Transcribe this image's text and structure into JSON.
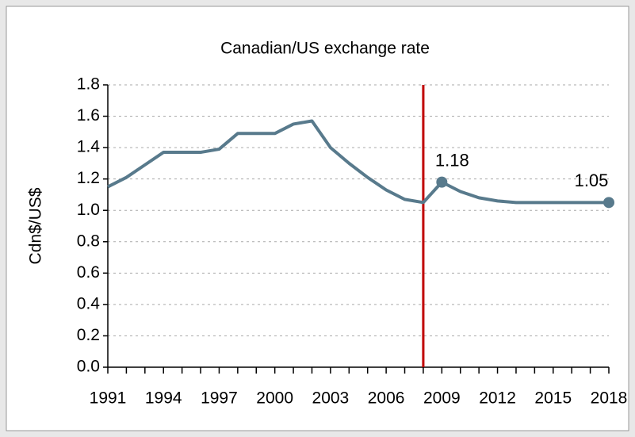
{
  "chart_data": {
    "type": "line",
    "title": "Canadian/US exchange rate",
    "y_label": "Cdn$/US$",
    "x": [
      1991,
      1992,
      1993,
      1994,
      1995,
      1996,
      1997,
      1998,
      1999,
      2000,
      2001,
      2002,
      2003,
      2004,
      2005,
      2006,
      2007,
      2008,
      2009,
      2010,
      2011,
      2012,
      2013,
      2014,
      2015,
      2016,
      2017,
      2018
    ],
    "series": [
      {
        "name": "Cdn$/US$",
        "color": "#587a8c",
        "values": [
          1.15,
          1.21,
          1.29,
          1.37,
          1.37,
          1.37,
          1.39,
          1.49,
          1.49,
          1.49,
          1.55,
          1.57,
          1.4,
          1.3,
          1.21,
          1.13,
          1.07,
          1.05,
          1.18,
          1.12,
          1.08,
          1.06,
          1.05,
          1.05,
          1.05,
          1.05,
          1.05,
          1.05
        ],
        "labeled_points": [
          18,
          27
        ]
      }
    ],
    "xlim": [
      1991,
      2018
    ],
    "xticks": [
      1991,
      1994,
      1997,
      2000,
      2003,
      2006,
      2009,
      2012,
      2015,
      2018
    ],
    "ylim": [
      0,
      1.8
    ],
    "yticks": [
      {
        "value": 0,
        "label": "0.0"
      },
      0.2,
      0.4,
      0.6,
      0.8,
      {
        "value": 1,
        "label": "1.0"
      },
      1.2,
      1.4,
      1.6,
      1.8
    ],
    "grid": true,
    "vline": {
      "x": 2008,
      "color": "#c00000"
    }
  }
}
